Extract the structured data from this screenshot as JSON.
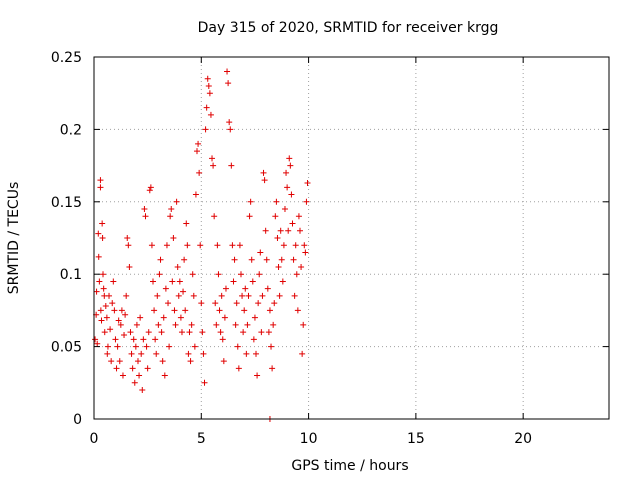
{
  "chart_data": {
    "type": "scatter",
    "title": "Day 315 of 2020, SRMTID for receiver krgg",
    "xlabel": "GPS time / hours",
    "ylabel": "SRMTID / TECUs",
    "xlim": [
      0,
      24
    ],
    "ylim": [
      0,
      0.25
    ],
    "xticks": [
      0,
      5,
      10,
      15,
      20
    ],
    "xtick_labels": [
      "0",
      "5",
      "10",
      "15",
      "20"
    ],
    "yticks": [
      0,
      0.05,
      0.1,
      0.15,
      0.2,
      0.25
    ],
    "ytick_labels": [
      "0",
      "0.05",
      "0.1",
      "0.15",
      "0.2",
      "0.25"
    ],
    "grid": true,
    "marker": "plus",
    "series": [
      {
        "name": "SRMTID",
        "color": "#e00000",
        "points": [
          [
            0.05,
            0.055
          ],
          [
            0.1,
            0.072
          ],
          [
            0.12,
            0.088
          ],
          [
            0.15,
            0.052
          ],
          [
            0.2,
            0.128
          ],
          [
            0.22,
            0.112
          ],
          [
            0.25,
            0.095
          ],
          [
            0.3,
            0.165
          ],
          [
            0.3,
            0.16
          ],
          [
            0.32,
            0.075
          ],
          [
            0.35,
            0.068
          ],
          [
            0.38,
            0.135
          ],
          [
            0.4,
            0.125
          ],
          [
            0.42,
            0.1
          ],
          [
            0.45,
            0.09
          ],
          [
            0.48,
            0.085
          ],
          [
            0.5,
            0.06
          ],
          [
            0.55,
            0.078
          ],
          [
            0.6,
            0.07
          ],
          [
            0.62,
            0.045
          ],
          [
            0.65,
            0.05
          ],
          [
            0.7,
            0.085
          ],
          [
            0.75,
            0.062
          ],
          [
            0.8,
            0.04
          ],
          [
            0.85,
            0.08
          ],
          [
            0.9,
            0.095
          ],
          [
            0.95,
            0.075
          ],
          [
            1.0,
            0.055
          ],
          [
            1.05,
            0.035
          ],
          [
            1.1,
            0.05
          ],
          [
            1.15,
            0.068
          ],
          [
            1.2,
            0.04
          ],
          [
            1.25,
            0.065
          ],
          [
            1.3,
            0.075
          ],
          [
            1.35,
            0.03
          ],
          [
            1.4,
            0.058
          ],
          [
            1.45,
            0.072
          ],
          [
            1.5,
            0.085
          ],
          [
            1.55,
            0.125
          ],
          [
            1.6,
            0.12
          ],
          [
            1.65,
            0.105
          ],
          [
            1.7,
            0.06
          ],
          [
            1.75,
            0.045
          ],
          [
            1.8,
            0.035
          ],
          [
            1.85,
            0.055
          ],
          [
            1.9,
            0.025
          ],
          [
            1.95,
            0.05
          ],
          [
            2.0,
            0.065
          ],
          [
            2.05,
            0.04
          ],
          [
            2.1,
            0.03
          ],
          [
            2.15,
            0.07
          ],
          [
            2.2,
            0.045
          ],
          [
            2.25,
            0.02
          ],
          [
            2.3,
            0.055
          ],
          [
            2.35,
            0.145
          ],
          [
            2.4,
            0.14
          ],
          [
            2.45,
            0.05
          ],
          [
            2.5,
            0.035
          ],
          [
            2.55,
            0.06
          ],
          [
            2.6,
            0.158
          ],
          [
            2.65,
            0.16
          ],
          [
            2.7,
            0.12
          ],
          [
            2.75,
            0.095
          ],
          [
            2.8,
            0.075
          ],
          [
            2.85,
            0.055
          ],
          [
            2.9,
            0.045
          ],
          [
            2.95,
            0.085
          ],
          [
            3.0,
            0.065
          ],
          [
            3.05,
            0.1
          ],
          [
            3.1,
            0.11
          ],
          [
            3.15,
            0.06
          ],
          [
            3.2,
            0.04
          ],
          [
            3.25,
            0.07
          ],
          [
            3.3,
            0.03
          ],
          [
            3.35,
            0.09
          ],
          [
            3.4,
            0.12
          ],
          [
            3.45,
            0.08
          ],
          [
            3.5,
            0.05
          ],
          [
            3.55,
            0.14
          ],
          [
            3.6,
            0.145
          ],
          [
            3.65,
            0.095
          ],
          [
            3.7,
            0.125
          ],
          [
            3.75,
            0.075
          ],
          [
            3.8,
            0.065
          ],
          [
            3.85,
            0.15
          ],
          [
            3.9,
            0.105
          ],
          [
            3.95,
            0.085
          ],
          [
            4.0,
            0.095
          ],
          [
            4.05,
            0.07
          ],
          [
            4.1,
            0.06
          ],
          [
            4.15,
            0.088
          ],
          [
            4.2,
            0.11
          ],
          [
            4.25,
            0.075
          ],
          [
            4.3,
            0.135
          ],
          [
            4.35,
            0.12
          ],
          [
            4.4,
            0.045
          ],
          [
            4.45,
            0.06
          ],
          [
            4.5,
            0.04
          ],
          [
            4.55,
            0.065
          ],
          [
            4.6,
            0.1
          ],
          [
            4.65,
            0.085
          ],
          [
            4.7,
            0.05
          ],
          [
            4.75,
            0.155
          ],
          [
            4.8,
            0.185
          ],
          [
            4.85,
            0.19
          ],
          [
            4.9,
            0.17
          ],
          [
            4.95,
            0.12
          ],
          [
            5.0,
            0.08
          ],
          [
            5.05,
            0.06
          ],
          [
            5.1,
            0.045
          ],
          [
            5.15,
            0.025
          ],
          [
            5.2,
            0.2
          ],
          [
            5.25,
            0.215
          ],
          [
            5.3,
            0.235
          ],
          [
            5.35,
            0.23
          ],
          [
            5.4,
            0.225
          ],
          [
            5.45,
            0.21
          ],
          [
            5.5,
            0.18
          ],
          [
            5.55,
            0.175
          ],
          [
            5.6,
            0.14
          ],
          [
            5.65,
            0.08
          ],
          [
            5.7,
            0.065
          ],
          [
            5.75,
            0.12
          ],
          [
            5.8,
            0.1
          ],
          [
            5.85,
            0.075
          ],
          [
            5.9,
            0.06
          ],
          [
            5.95,
            0.085
          ],
          [
            6.0,
            0.055
          ],
          [
            6.05,
            0.04
          ],
          [
            6.1,
            0.07
          ],
          [
            6.15,
            0.09
          ],
          [
            6.2,
            0.24
          ],
          [
            6.25,
            0.232
          ],
          [
            6.3,
            0.205
          ],
          [
            6.35,
            0.2
          ],
          [
            6.4,
            0.175
          ],
          [
            6.45,
            0.12
          ],
          [
            6.5,
            0.095
          ],
          [
            6.55,
            0.11
          ],
          [
            6.6,
            0.065
          ],
          [
            6.65,
            0.08
          ],
          [
            6.7,
            0.05
          ],
          [
            6.75,
            0.035
          ],
          [
            6.8,
            0.12
          ],
          [
            6.85,
            0.1
          ],
          [
            6.9,
            0.085
          ],
          [
            6.95,
            0.06
          ],
          [
            7.0,
            0.075
          ],
          [
            7.05,
            0.09
          ],
          [
            7.1,
            0.045
          ],
          [
            7.15,
            0.065
          ],
          [
            7.2,
            0.085
          ],
          [
            7.25,
            0.14
          ],
          [
            7.3,
            0.15
          ],
          [
            7.35,
            0.11
          ],
          [
            7.4,
            0.095
          ],
          [
            7.45,
            0.055
          ],
          [
            7.5,
            0.07
          ],
          [
            7.55,
            0.045
          ],
          [
            7.6,
            0.03
          ],
          [
            7.65,
            0.08
          ],
          [
            7.7,
            0.1
          ],
          [
            7.75,
            0.115
          ],
          [
            7.8,
            0.06
          ],
          [
            7.85,
            0.085
          ],
          [
            7.9,
            0.17
          ],
          [
            7.95,
            0.165
          ],
          [
            8.0,
            0.13
          ],
          [
            8.05,
            0.11
          ],
          [
            8.1,
            0.09
          ],
          [
            8.15,
            0.06
          ],
          [
            8.2,
            0.075
          ],
          [
            8.25,
            0.05
          ],
          [
            8.3,
            0.035
          ],
          [
            8.35,
            0.065
          ],
          [
            8.4,
            0.08
          ],
          [
            8.45,
            0.14
          ],
          [
            8.5,
            0.15
          ],
          [
            8.55,
            0.125
          ],
          [
            8.6,
            0.105
          ],
          [
            8.65,
            0.085
          ],
          [
            8.7,
            0.13
          ],
          [
            8.75,
            0.11
          ],
          [
            8.8,
            0.095
          ],
          [
            8.85,
            0.12
          ],
          [
            8.9,
            0.145
          ],
          [
            8.95,
            0.17
          ],
          [
            9.0,
            0.16
          ],
          [
            9.05,
            0.13
          ],
          [
            9.1,
            0.18
          ],
          [
            9.15,
            0.175
          ],
          [
            9.2,
            0.155
          ],
          [
            9.25,
            0.135
          ],
          [
            9.3,
            0.11
          ],
          [
            9.35,
            0.085
          ],
          [
            9.4,
            0.12
          ],
          [
            9.45,
            0.1
          ],
          [
            9.5,
            0.075
          ],
          [
            9.55,
            0.14
          ],
          [
            9.6,
            0.13
          ],
          [
            9.65,
            0.105
          ],
          [
            9.7,
            0.045
          ],
          [
            9.75,
            0.065
          ],
          [
            9.8,
            0.12
          ],
          [
            9.85,
            0.115
          ],
          [
            9.9,
            0.15
          ],
          [
            9.95,
            0.163
          ],
          [
            8.2,
            0.0
          ]
        ]
      }
    ]
  }
}
